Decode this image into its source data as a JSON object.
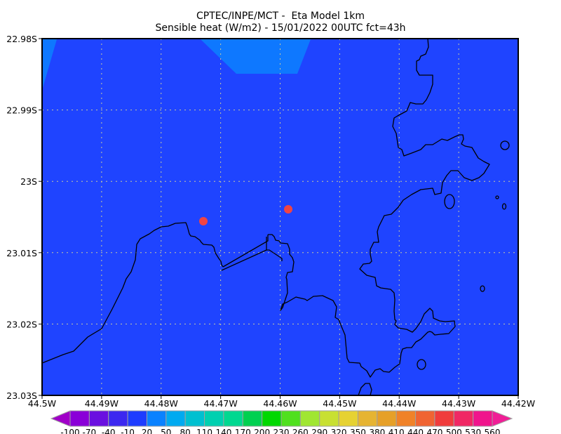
{
  "title": {
    "line1": "CPTEC/INPE/MCT -  Eta Model 1km",
    "line2": "Sensible heat (W/m2) - 15/01/2022 00UTC fct=43h"
  },
  "map": {
    "lat_labels": [
      "22.98S",
      "22.99S",
      "23S",
      "23.01S",
      "23.02S",
      "23.03S"
    ],
    "lon_labels": [
      "44.5W",
      "44.49W",
      "44.48W",
      "44.47W",
      "44.46W",
      "44.45W",
      "44.44W",
      "44.43W",
      "44.42W"
    ],
    "field_color_main": "#1f44ff",
    "field_color_light": "#0e78ff",
    "marker_color": "#f04444",
    "coastline_color": "#000000",
    "grid": true
  },
  "colorbar": {
    "labels": [
      "-100",
      "-70",
      "-40",
      "-10",
      "20",
      "50",
      "80",
      "110",
      "140",
      "170",
      "200",
      "230",
      "260",
      "290",
      "320",
      "350",
      "380",
      "410",
      "440",
      "470",
      "500",
      "530",
      "560"
    ],
    "colors": [
      "#8a00d8",
      "#6a10e0",
      "#3c28f0",
      "#1e3cff",
      "#0a82ff",
      "#00aaf0",
      "#00c0d0",
      "#00d0b0",
      "#00d890",
      "#00d050",
      "#00d800",
      "#50e01e",
      "#a0e632",
      "#c8e032",
      "#e6d232",
      "#e6b432",
      "#e6a028",
      "#f08228",
      "#f06432",
      "#f03c3c",
      "#f02864",
      "#f0148c"
    ],
    "under_color": "#a000c8",
    "over_color": "#f01e96"
  }
}
